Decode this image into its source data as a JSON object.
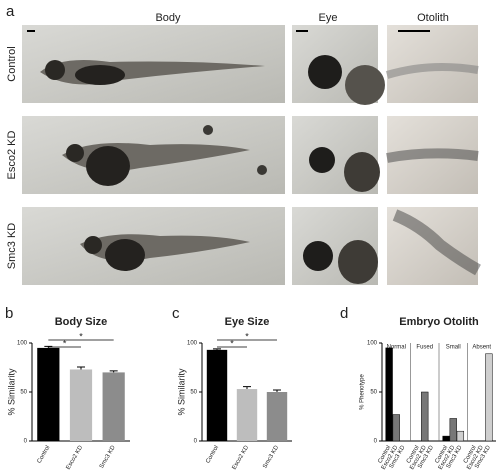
{
  "figure": {
    "panel_labels": [
      "a",
      "b",
      "c",
      "d"
    ],
    "column_headers": [
      "Body",
      "Eye",
      "Otolith"
    ],
    "row_labels": [
      "Control",
      "Esco2 KD",
      "Smc3 KD"
    ]
  },
  "chart_data": [
    {
      "type": "bar",
      "title": "Body Size",
      "y_label": "% Similarity",
      "categories": [
        "Control",
        "Esco2 KD",
        "Smc3 KD"
      ],
      "values": [
        95,
        73,
        70
      ],
      "errors": [
        1.5,
        2.5,
        1.5
      ],
      "colors": [
        "#000000",
        "#bdbdbd",
        "#8c8c8c"
      ],
      "annotations": [
        "*",
        "*"
      ],
      "ylim": [
        0,
        100
      ],
      "yticks": [
        0,
        50,
        100
      ]
    },
    {
      "type": "bar",
      "title": "Eye Size",
      "y_label": "% Similarity",
      "categories": [
        "Control",
        "Esco2 KD",
        "Smc3 KD"
      ],
      "values": [
        93,
        53,
        50
      ],
      "errors": [
        1,
        2.5,
        2
      ],
      "colors": [
        "#000000",
        "#bdbdbd",
        "#8c8c8c"
      ],
      "annotations": [
        "*",
        "*"
      ],
      "ylim": [
        0,
        100
      ],
      "yticks": [
        0,
        50,
        100
      ]
    },
    {
      "type": "grouped-bar",
      "title": "Embryo Otolith",
      "y_label": "% Phenotype",
      "categories": [
        "Normal",
        "Fused",
        "Small",
        "Absent"
      ],
      "series": [
        {
          "name": "Control",
          "color": "#000000",
          "values": [
            95,
            0,
            5,
            0
          ]
        },
        {
          "name": "Esco2 KD",
          "color": "#777777",
          "values": [
            27,
            50,
            23,
            0
          ]
        },
        {
          "name": "Smc3 KD",
          "color": "#cfcfcf",
          "values": [
            0,
            0,
            10,
            89
          ]
        }
      ],
      "ylim": [
        0,
        100
      ],
      "yticks": [
        0,
        50,
        100
      ]
    }
  ]
}
